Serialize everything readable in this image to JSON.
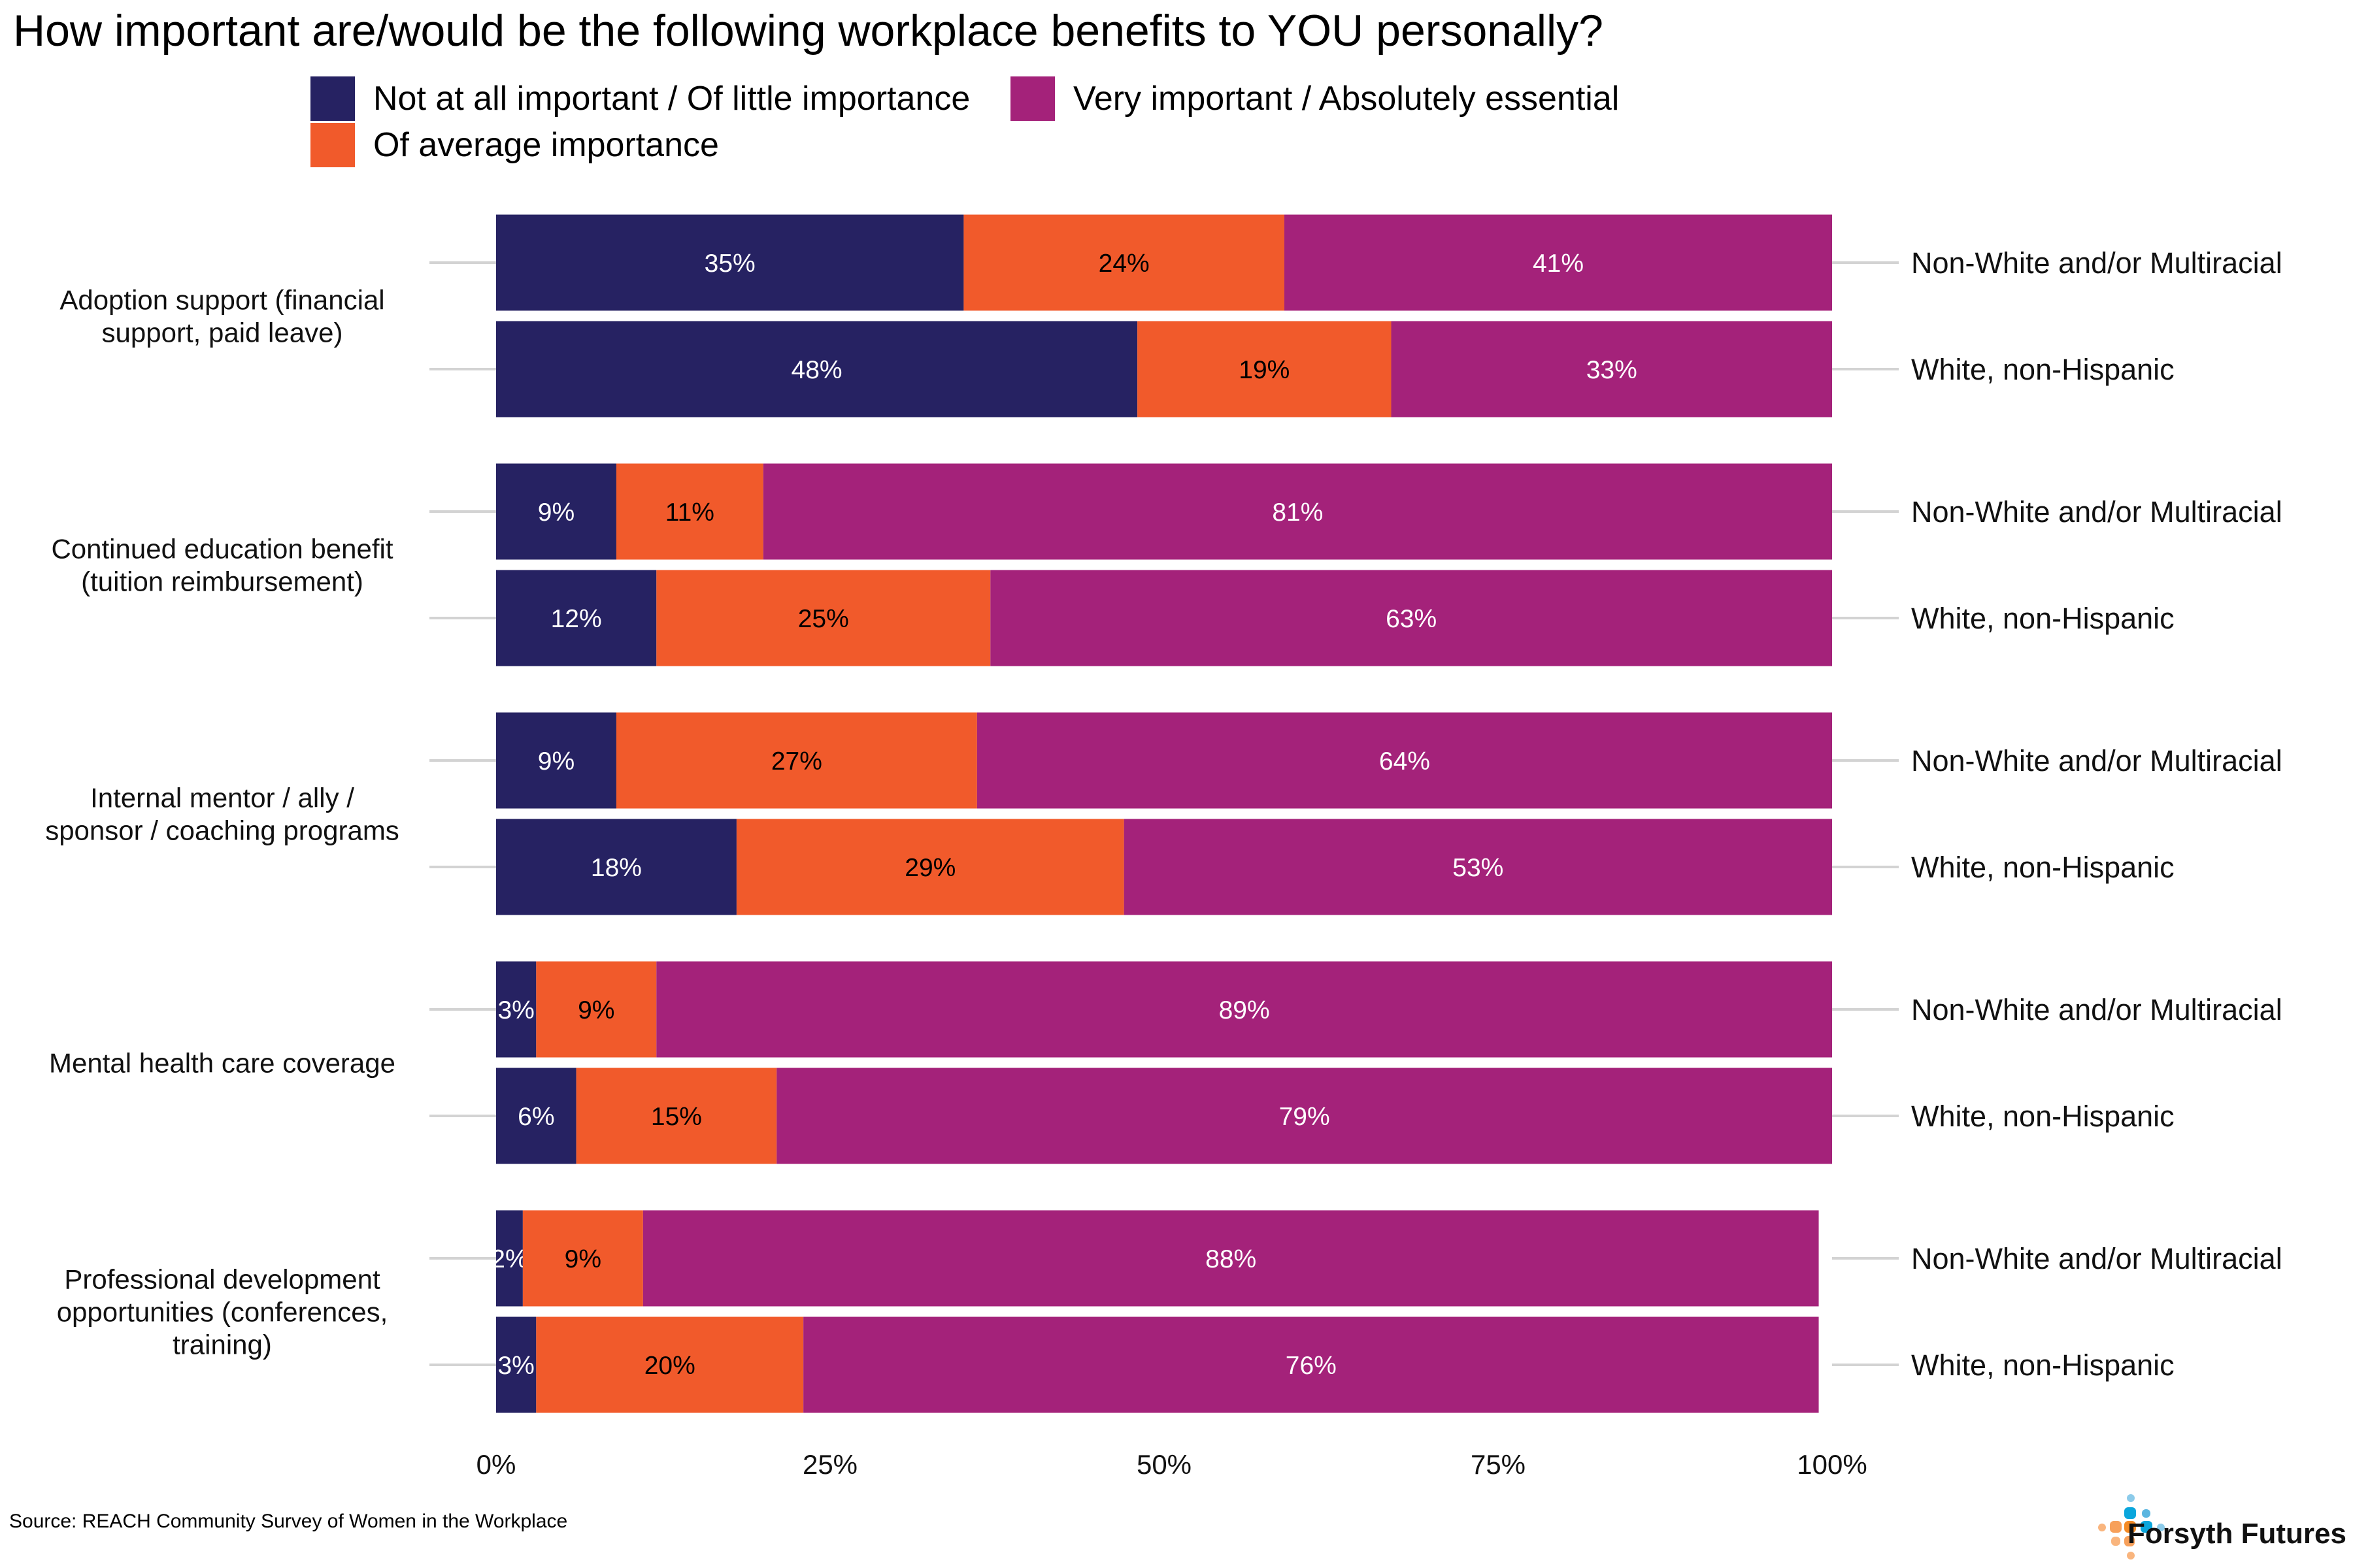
{
  "title": "How important are/would be the following workplace benefits to YOU personally?",
  "source": "Source: REACH Community Survey of Women in the Workplace",
  "logo": {
    "text": "Forsyth Futures",
    "icon": "forsyth-futures-dots-icon"
  },
  "legend": [
    {
      "label": "Not at all important / Of little importance",
      "color": "#262262"
    },
    {
      "label": "Very important / Absolutely essential",
      "color": "#A4227A"
    },
    {
      "label": "Of average importance",
      "color": "#F15A2B"
    }
  ],
  "chart_data": {
    "type": "bar",
    "orientation": "horizontal",
    "stacked": true,
    "percent": true,
    "title": "How important are/would be the following workplace benefits to YOU personally?",
    "xlabel": "",
    "ylabel": "",
    "xlim": [
      0,
      100
    ],
    "x_ticks": [
      "0%",
      "25%",
      "50%",
      "75%",
      "100%"
    ],
    "x_tick_values": [
      0,
      25,
      50,
      75,
      100
    ],
    "legend_position": "top",
    "grid": false,
    "series": [
      {
        "name": "Not at all important / Of little importance",
        "color": "#262262",
        "label_color": "#FFFFFF"
      },
      {
        "name": "Of average importance",
        "color": "#F15A2B",
        "label_color": "#000000"
      },
      {
        "name": "Very important / Absolutely essential",
        "color": "#A4227A",
        "label_color": "#FFFFFF"
      }
    ],
    "groups": [
      "Non-White and/or Multiracial",
      "White, non-Hispanic"
    ],
    "categories": [
      {
        "label": "Adoption support (financial support, paid leave)",
        "label_lines": [
          "Adoption support (financial",
          "support, paid leave)"
        ],
        "rows": [
          {
            "group": "Non-White and/or Multiracial",
            "values": [
              35,
              24,
              41
            ],
            "labels": [
              "35%",
              "24%",
              "41%"
            ]
          },
          {
            "group": "White, non-Hispanic",
            "values": [
              48,
              19,
              33
            ],
            "labels": [
              "48%",
              "19%",
              "33%"
            ]
          }
        ]
      },
      {
        "label": "Continued education benefit (tuition reimbursement)",
        "label_lines": [
          "Continued education benefit",
          "(tuition reimbursement)"
        ],
        "rows": [
          {
            "group": "Non-White and/or Multiracial",
            "values": [
              9,
              11,
              81
            ],
            "labels": [
              "9%",
              "11%",
              "81%"
            ]
          },
          {
            "group": "White, non-Hispanic",
            "values": [
              12,
              25,
              63
            ],
            "labels": [
              "12%",
              "25%",
              "63%"
            ]
          }
        ]
      },
      {
        "label": "Internal mentor / ally / sponsor / coaching programs",
        "label_lines": [
          "Internal mentor / ally /",
          "sponsor / coaching programs"
        ],
        "rows": [
          {
            "group": "Non-White and/or Multiracial",
            "values": [
              9,
              27,
              64
            ],
            "labels": [
              "9%",
              "27%",
              "64%"
            ]
          },
          {
            "group": "White, non-Hispanic",
            "values": [
              18,
              29,
              53
            ],
            "labels": [
              "18%",
              "29%",
              "53%"
            ]
          }
        ]
      },
      {
        "label": "Mental health care coverage",
        "label_lines": [
          "Mental health care coverage"
        ],
        "rows": [
          {
            "group": "Non-White and/or Multiracial",
            "values": [
              3,
              9,
              89
            ],
            "labels": [
              "3%",
              "9%",
              "89%"
            ]
          },
          {
            "group": "White, non-Hispanic",
            "values": [
              6,
              15,
              79
            ],
            "labels": [
              "6%",
              "15%",
              "79%"
            ]
          }
        ]
      },
      {
        "label": "Professional development opportunities (conferences, training)",
        "label_lines": [
          "Professional development",
          "opportunities (conferences,",
          "training)"
        ],
        "rows": [
          {
            "group": "Non-White and/or Multiracial",
            "values": [
              2,
              9,
              88
            ],
            "labels": [
              "2%",
              "9%",
              "88%"
            ]
          },
          {
            "group": "White, non-Hispanic",
            "values": [
              3,
              20,
              76
            ],
            "labels": [
              "3%",
              "20%",
              "76%"
            ]
          }
        ]
      }
    ]
  }
}
